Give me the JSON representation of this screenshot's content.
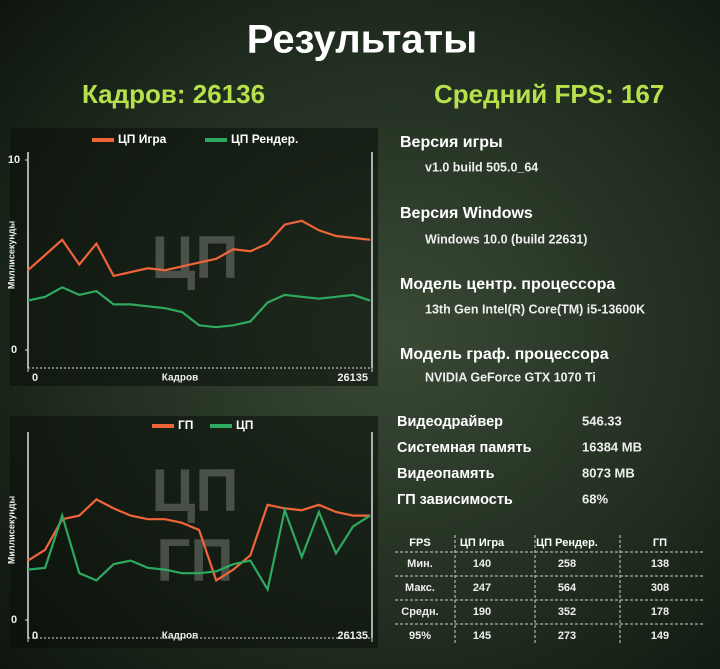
{
  "header": {
    "title": "Результаты",
    "frames": "Кадров: 26136",
    "avg_fps": "Средний FPS: 167"
  },
  "chart_data": [
    {
      "type": "line",
      "y_label": "Миллисекунды",
      "x_label": "Кадров",
      "watermark": [
        "ЦП"
      ],
      "x": [
        0,
        1300,
        2600,
        3900,
        5200,
        6500,
        7800,
        9100,
        10400,
        11700,
        13000,
        14300,
        15600,
        16900,
        18200,
        19500,
        20800,
        22100,
        23400,
        24700,
        26000
      ],
      "xlim": [
        0,
        26135
      ],
      "xticks": [
        0,
        26135
      ],
      "ylim": [
        0,
        10
      ],
      "yticks": [
        0,
        10
      ],
      "series": [
        {
          "name": "ЦП Игра",
          "color": "#f0643a",
          "values": [
            4.2,
            5.0,
            5.8,
            4.5,
            5.6,
            3.9,
            4.1,
            4.3,
            4.2,
            4.4,
            4.6,
            4.8,
            5.3,
            5.2,
            5.6,
            6.6,
            6.8,
            6.3,
            6.0,
            5.9,
            5.8
          ]
        },
        {
          "name": "ЦП Рендер.",
          "color": "#2fa860",
          "values": [
            2.6,
            2.8,
            3.3,
            2.9,
            3.1,
            2.4,
            2.4,
            2.3,
            2.2,
            2.0,
            1.3,
            1.2,
            1.3,
            1.5,
            2.5,
            2.9,
            2.8,
            2.7,
            2.8,
            2.9,
            2.6
          ]
        }
      ]
    },
    {
      "type": "line",
      "y_label": "Миллисекунды",
      "x_label": "Кадров",
      "watermark": [
        "ЦП",
        "ГП"
      ],
      "x": [
        0,
        1300,
        2600,
        3900,
        5200,
        6500,
        7800,
        9100,
        10400,
        11700,
        13000,
        14300,
        15600,
        16900,
        18200,
        19500,
        20800,
        22100,
        23400,
        24700,
        26000
      ],
      "xlim": [
        0,
        26135
      ],
      "xticks": [
        0,
        26135
      ],
      "ylim": [
        0,
        10
      ],
      "yticks": [
        0
      ],
      "series": [
        {
          "name": "ГП",
          "color": "#f0643a",
          "values": [
            3.3,
            3.9,
            5.6,
            5.8,
            6.7,
            6.2,
            5.8,
            5.6,
            5.6,
            5.4,
            5.0,
            2.2,
            2.8,
            3.6,
            6.4,
            6.2,
            6.1,
            6.4,
            6.0,
            5.8,
            5.8
          ]
        },
        {
          "name": "ЦП",
          "color": "#2fa860",
          "values": [
            2.8,
            2.9,
            5.8,
            2.6,
            2.2,
            3.1,
            3.3,
            2.9,
            2.8,
            2.6,
            2.6,
            2.7,
            3.1,
            3.3,
            1.7,
            6.1,
            3.5,
            6.0,
            3.7,
            5.2,
            5.8
          ]
        }
      ]
    }
  ],
  "info": [
    {
      "label": "Версия игры",
      "value": "v1.0 build 505.0_64"
    },
    {
      "label": "Версия Windows",
      "value": "Windows 10.0 (build 22631)"
    },
    {
      "label": "Модель центр. процессора",
      "value": "13th Gen Intel(R) Core(TM) i5-13600K"
    },
    {
      "label": "Модель граф. процессора",
      "value": "NVIDIA GeForce GTX 1070 Ti"
    }
  ],
  "specs": [
    {
      "label": "Видеодрайвер",
      "value": "546.33"
    },
    {
      "label": "Системная память",
      "value": "16384 MB"
    },
    {
      "label": "Видеопамять",
      "value": "8073 MB"
    },
    {
      "label": "ГП зависимость",
      "value": "68%"
    }
  ],
  "table": {
    "header": [
      "FPS",
      "ЦП Игра",
      "ЦП Рендер.",
      "ГП"
    ],
    "rows": [
      [
        "Мин.",
        140,
        258,
        138
      ],
      [
        "Макс.",
        247,
        564,
        308
      ],
      [
        "Средн.",
        190,
        352,
        178
      ],
      [
        "95%",
        145,
        273,
        149
      ]
    ]
  }
}
